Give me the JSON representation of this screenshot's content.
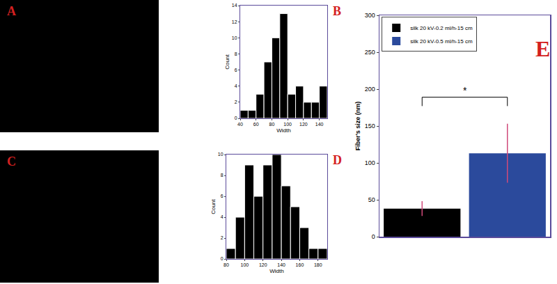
{
  "chart_data": [
    {
      "type": "image",
      "title": "A"
    },
    {
      "type": "histogram",
      "title": "B",
      "xlabel": "Width",
      "ylabel": "Count",
      "bins": [
        40,
        50,
        60,
        70,
        80,
        90,
        100,
        110,
        120,
        130,
        140,
        150
      ],
      "values": [
        1,
        1,
        3,
        7,
        10,
        13,
        3,
        4,
        2,
        2,
        4
      ],
      "color": "#000000",
      "xlim": [
        40,
        150
      ],
      "xticks": [
        40,
        60,
        80,
        100,
        120,
        140
      ],
      "ylim": [
        0,
        14
      ],
      "yticks": [
        0,
        2,
        4,
        6,
        8,
        10,
        12,
        14
      ],
      "grid": false
    },
    {
      "type": "image",
      "title": "C"
    },
    {
      "type": "histogram",
      "title": "D",
      "xlabel": "Width",
      "ylabel": "Count",
      "bins": [
        80,
        90,
        100,
        110,
        120,
        130,
        140,
        150,
        160,
        170,
        180,
        190
      ],
      "values": [
        1,
        4,
        9,
        6,
        9,
        10,
        7,
        5,
        3,
        1,
        1
      ],
      "color": "#000000",
      "xlim": [
        80,
        190
      ],
      "xticks": [
        80,
        100,
        120,
        140,
        160,
        180
      ],
      "ylim": [
        0,
        10
      ],
      "yticks": [
        0,
        2,
        4,
        6,
        8,
        10
      ],
      "grid": false
    },
    {
      "type": "bar",
      "title": "E",
      "ylabel": "Fiber's size (nm)",
      "categories": [
        null,
        null
      ],
      "series": [
        {
          "name": "silk 20 kV-0.2 ml/h-15 cm",
          "color": "#000000",
          "values": [
            38,
            null
          ],
          "error": [
            10,
            null
          ]
        },
        {
          "name": "silk 20 kV-0.5 ml/h-15 cm",
          "color": "#2b4a9c",
          "values": [
            null,
            113
          ],
          "error": [
            null,
            40
          ]
        }
      ],
      "ylim": [
        0,
        300
      ],
      "yticks": [
        0,
        50,
        100,
        150,
        200,
        250,
        300
      ],
      "grid": false,
      "legend": "upper left",
      "tick_labels": "y",
      "annotations": [
        {
          "text": "*"
        }
      ]
    }
  ]
}
